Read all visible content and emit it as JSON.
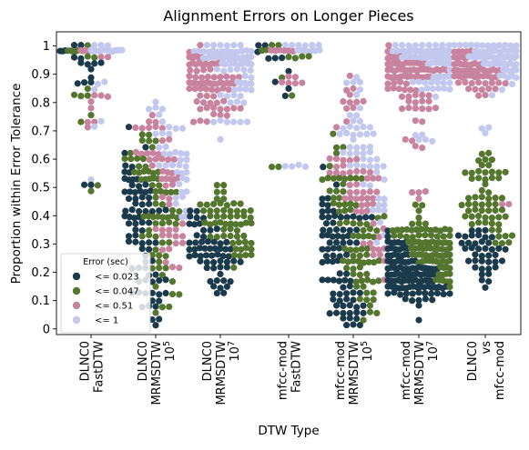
{
  "chart_data": {
    "type": "scatter",
    "subtype": "swarm",
    "title": "Alignment Errors on Longer Pieces",
    "xlabel": "DTW Type",
    "ylabel": "Proportion within Error Tolerance",
    "ylim": [
      -0.02,
      1.05
    ],
    "yticks": [
      "0",
      "0.1",
      "0.2",
      "0.3",
      "0.4",
      "0.5",
      "0.6",
      "0.7",
      "0.8",
      "0.9",
      "1"
    ],
    "grid": false,
    "legend_position": "lower-left",
    "legend_title": "Error (sec)",
    "categories": [
      [
        "DLNC0",
        "FastDTW"
      ],
      [
        "DLNC0",
        "MRMSDTW",
        "10^5"
      ],
      [
        "DLNC0",
        "MRMSDTW",
        "10^7"
      ],
      [
        "mfcc-mod",
        "FastDTW"
      ],
      [
        "mfcc-mod",
        "MRMSDTW",
        "10^5"
      ],
      [
        "mfcc-mod",
        "MRMSDTW",
        "10^7"
      ],
      [
        "DLNC0",
        "vs",
        "mfcc-mod"
      ]
    ],
    "series": [
      {
        "name": "<= 0.023",
        "color": "#1b3a4b",
        "groups": [
          {
            "count": 18,
            "clusters": [
              [
                0.97,
                0.03,
                12
              ],
              [
                0.87,
                0.02,
                4
              ],
              [
                0.51,
                0.01,
                2
              ]
            ]
          },
          {
            "count": 80,
            "clusters": [
              [
                0.42,
                0.1,
                50
              ],
              [
                0.2,
                0.07,
                22
              ],
              [
                0.08,
                0.04,
                8
              ]
            ]
          },
          {
            "count": 58,
            "clusters": [
              [
                0.3,
                0.05,
                40
              ],
              [
                0.22,
                0.03,
                12
              ],
              [
                0.15,
                0.02,
                6
              ]
            ]
          },
          {
            "count": 10,
            "clusters": [
              [
                0.96,
                0.03,
                7
              ],
              [
                0.86,
                0.02,
                3
              ]
            ]
          },
          {
            "count": 85,
            "clusters": [
              [
                0.3,
                0.1,
                55
              ],
              [
                0.13,
                0.06,
                22
              ],
              [
                0.05,
                0.02,
                8
              ]
            ]
          },
          {
            "count": 110,
            "clusters": [
              [
                0.22,
                0.06,
                90
              ],
              [
                0.14,
                0.03,
                20
              ]
            ]
          },
          {
            "count": 40,
            "clusters": [
              [
                0.3,
                0.04,
                32
              ],
              [
                0.2,
                0.04,
                8
              ]
            ]
          }
        ]
      },
      {
        "name": "<= 0.047",
        "color": "#54762e",
        "groups": [
          {
            "count": 16,
            "clusters": [
              [
                0.98,
                0.02,
                8
              ],
              [
                0.85,
                0.03,
                4
              ],
              [
                0.72,
                0.02,
                2
              ],
              [
                0.51,
                0.01,
                2
              ]
            ]
          },
          {
            "count": 70,
            "clusters": [
              [
                0.5,
                0.09,
                45
              ],
              [
                0.25,
                0.08,
                20
              ],
              [
                0.1,
                0.04,
                5
              ]
            ]
          },
          {
            "count": 60,
            "clusters": [
              [
                0.38,
                0.05,
                40
              ],
              [
                0.28,
                0.04,
                12
              ],
              [
                0.48,
                0.03,
                8
              ]
            ]
          },
          {
            "count": 12,
            "clusters": [
              [
                0.98,
                0.02,
                8
              ],
              [
                0.88,
                0.02,
                2
              ],
              [
                0.55,
                0.01,
                2
              ]
            ]
          },
          {
            "count": 80,
            "clusters": [
              [
                0.4,
                0.12,
                55
              ],
              [
                0.18,
                0.07,
                20
              ],
              [
                0.06,
                0.02,
                5
              ]
            ]
          },
          {
            "count": 90,
            "clusters": [
              [
                0.3,
                0.05,
                75
              ],
              [
                0.2,
                0.04,
                15
              ]
            ]
          },
          {
            "count": 60,
            "clusters": [
              [
                0.45,
                0.06,
                35
              ],
              [
                0.55,
                0.03,
                15
              ],
              [
                0.35,
                0.04,
                10
              ]
            ]
          }
        ]
      },
      {
        "name": "<= 0.51",
        "color": "#c8839e",
        "groups": [
          {
            "count": 14,
            "clusters": [
              [
                0.99,
                0.01,
                6
              ],
              [
                0.82,
                0.02,
                5
              ],
              [
                0.72,
                0.01,
                3
              ]
            ]
          },
          {
            "count": 50,
            "clusters": [
              [
                0.55,
                0.07,
                28
              ],
              [
                0.3,
                0.06,
                15
              ],
              [
                0.7,
                0.03,
                7
              ]
            ]
          },
          {
            "count": 75,
            "clusters": [
              [
                0.88,
                0.05,
                50
              ],
              [
                0.76,
                0.04,
                18
              ],
              [
                0.95,
                0.02,
                7
              ]
            ]
          },
          {
            "count": 12,
            "clusters": [
              [
                0.99,
                0.01,
                6
              ],
              [
                0.87,
                0.02,
                6
              ]
            ]
          },
          {
            "count": 60,
            "clusters": [
              [
                0.55,
                0.08,
                30
              ],
              [
                0.35,
                0.07,
                20
              ],
              [
                0.8,
                0.04,
                10
              ]
            ]
          },
          {
            "count": 90,
            "clusters": [
              [
                0.92,
                0.03,
                60
              ],
              [
                0.82,
                0.03,
                22
              ],
              [
                0.65,
                0.02,
                4
              ],
              [
                0.47,
                0.01,
                4
              ]
            ]
          },
          {
            "count": 65,
            "clusters": [
              [
                0.92,
                0.03,
                55
              ],
              [
                0.85,
                0.02,
                8
              ],
              [
                0.45,
                0.01,
                2
              ]
            ]
          }
        ]
      },
      {
        "name": "<= 1",
        "color": "#c3c8ee",
        "groups": [
          {
            "count": 22,
            "clusters": [
              [
                0.99,
                0.01,
                16
              ],
              [
                0.86,
                0.02,
                3
              ],
              [
                0.73,
                0.01,
                2
              ],
              [
                0.52,
                0.01,
                1
              ]
            ]
          },
          {
            "count": 40,
            "clusters": [
              [
                0.6,
                0.08,
                25
              ],
              [
                0.72,
                0.05,
                10
              ],
              [
                0.42,
                0.05,
                5
              ]
            ]
          },
          {
            "count": 85,
            "clusters": [
              [
                0.95,
                0.03,
                60
              ],
              [
                0.85,
                0.03,
                18
              ],
              [
                0.7,
                0.02,
                7
              ]
            ]
          },
          {
            "count": 16,
            "clusters": [
              [
                0.99,
                0.01,
                12
              ],
              [
                0.57,
                0.01,
                4
              ]
            ]
          },
          {
            "count": 55,
            "clusters": [
              [
                0.65,
                0.07,
                35
              ],
              [
                0.45,
                0.06,
                15
              ],
              [
                0.85,
                0.02,
                5
              ]
            ]
          },
          {
            "count": 95,
            "clusters": [
              [
                0.97,
                0.02,
                70
              ],
              [
                0.87,
                0.03,
                20
              ],
              [
                0.68,
                0.01,
                5
              ]
            ]
          },
          {
            "count": 75,
            "clusters": [
              [
                0.97,
                0.02,
                60
              ],
              [
                0.88,
                0.03,
                12
              ],
              [
                0.7,
                0.01,
                3
              ]
            ]
          }
        ]
      }
    ]
  }
}
